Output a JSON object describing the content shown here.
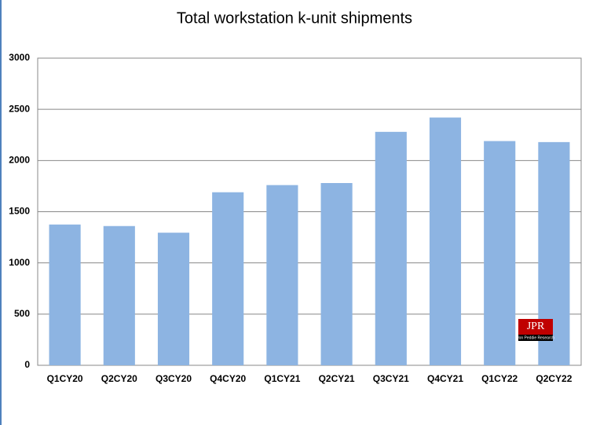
{
  "chart_data": {
    "type": "bar",
    "title": "Total workstation k-unit shipments",
    "categories": [
      "Q1CY20",
      "Q2CY20",
      "Q3CY20",
      "Q4CY20",
      "Q1CY21",
      "Q2CY21",
      "Q3CY21",
      "Q4CY21",
      "Q1CY22",
      "Q2CY22"
    ],
    "values": [
      1375,
      1360,
      1295,
      1690,
      1760,
      1780,
      2280,
      2420,
      2190,
      2180
    ],
    "color": "#8db4e2",
    "ylim": [
      0,
      3000
    ],
    "yticks": [
      0,
      500,
      1000,
      1500,
      2000,
      2500,
      3000
    ],
    "grid": true
  },
  "logo": {
    "text": "JPR",
    "subtitle": "Jon Peddie Research"
  }
}
